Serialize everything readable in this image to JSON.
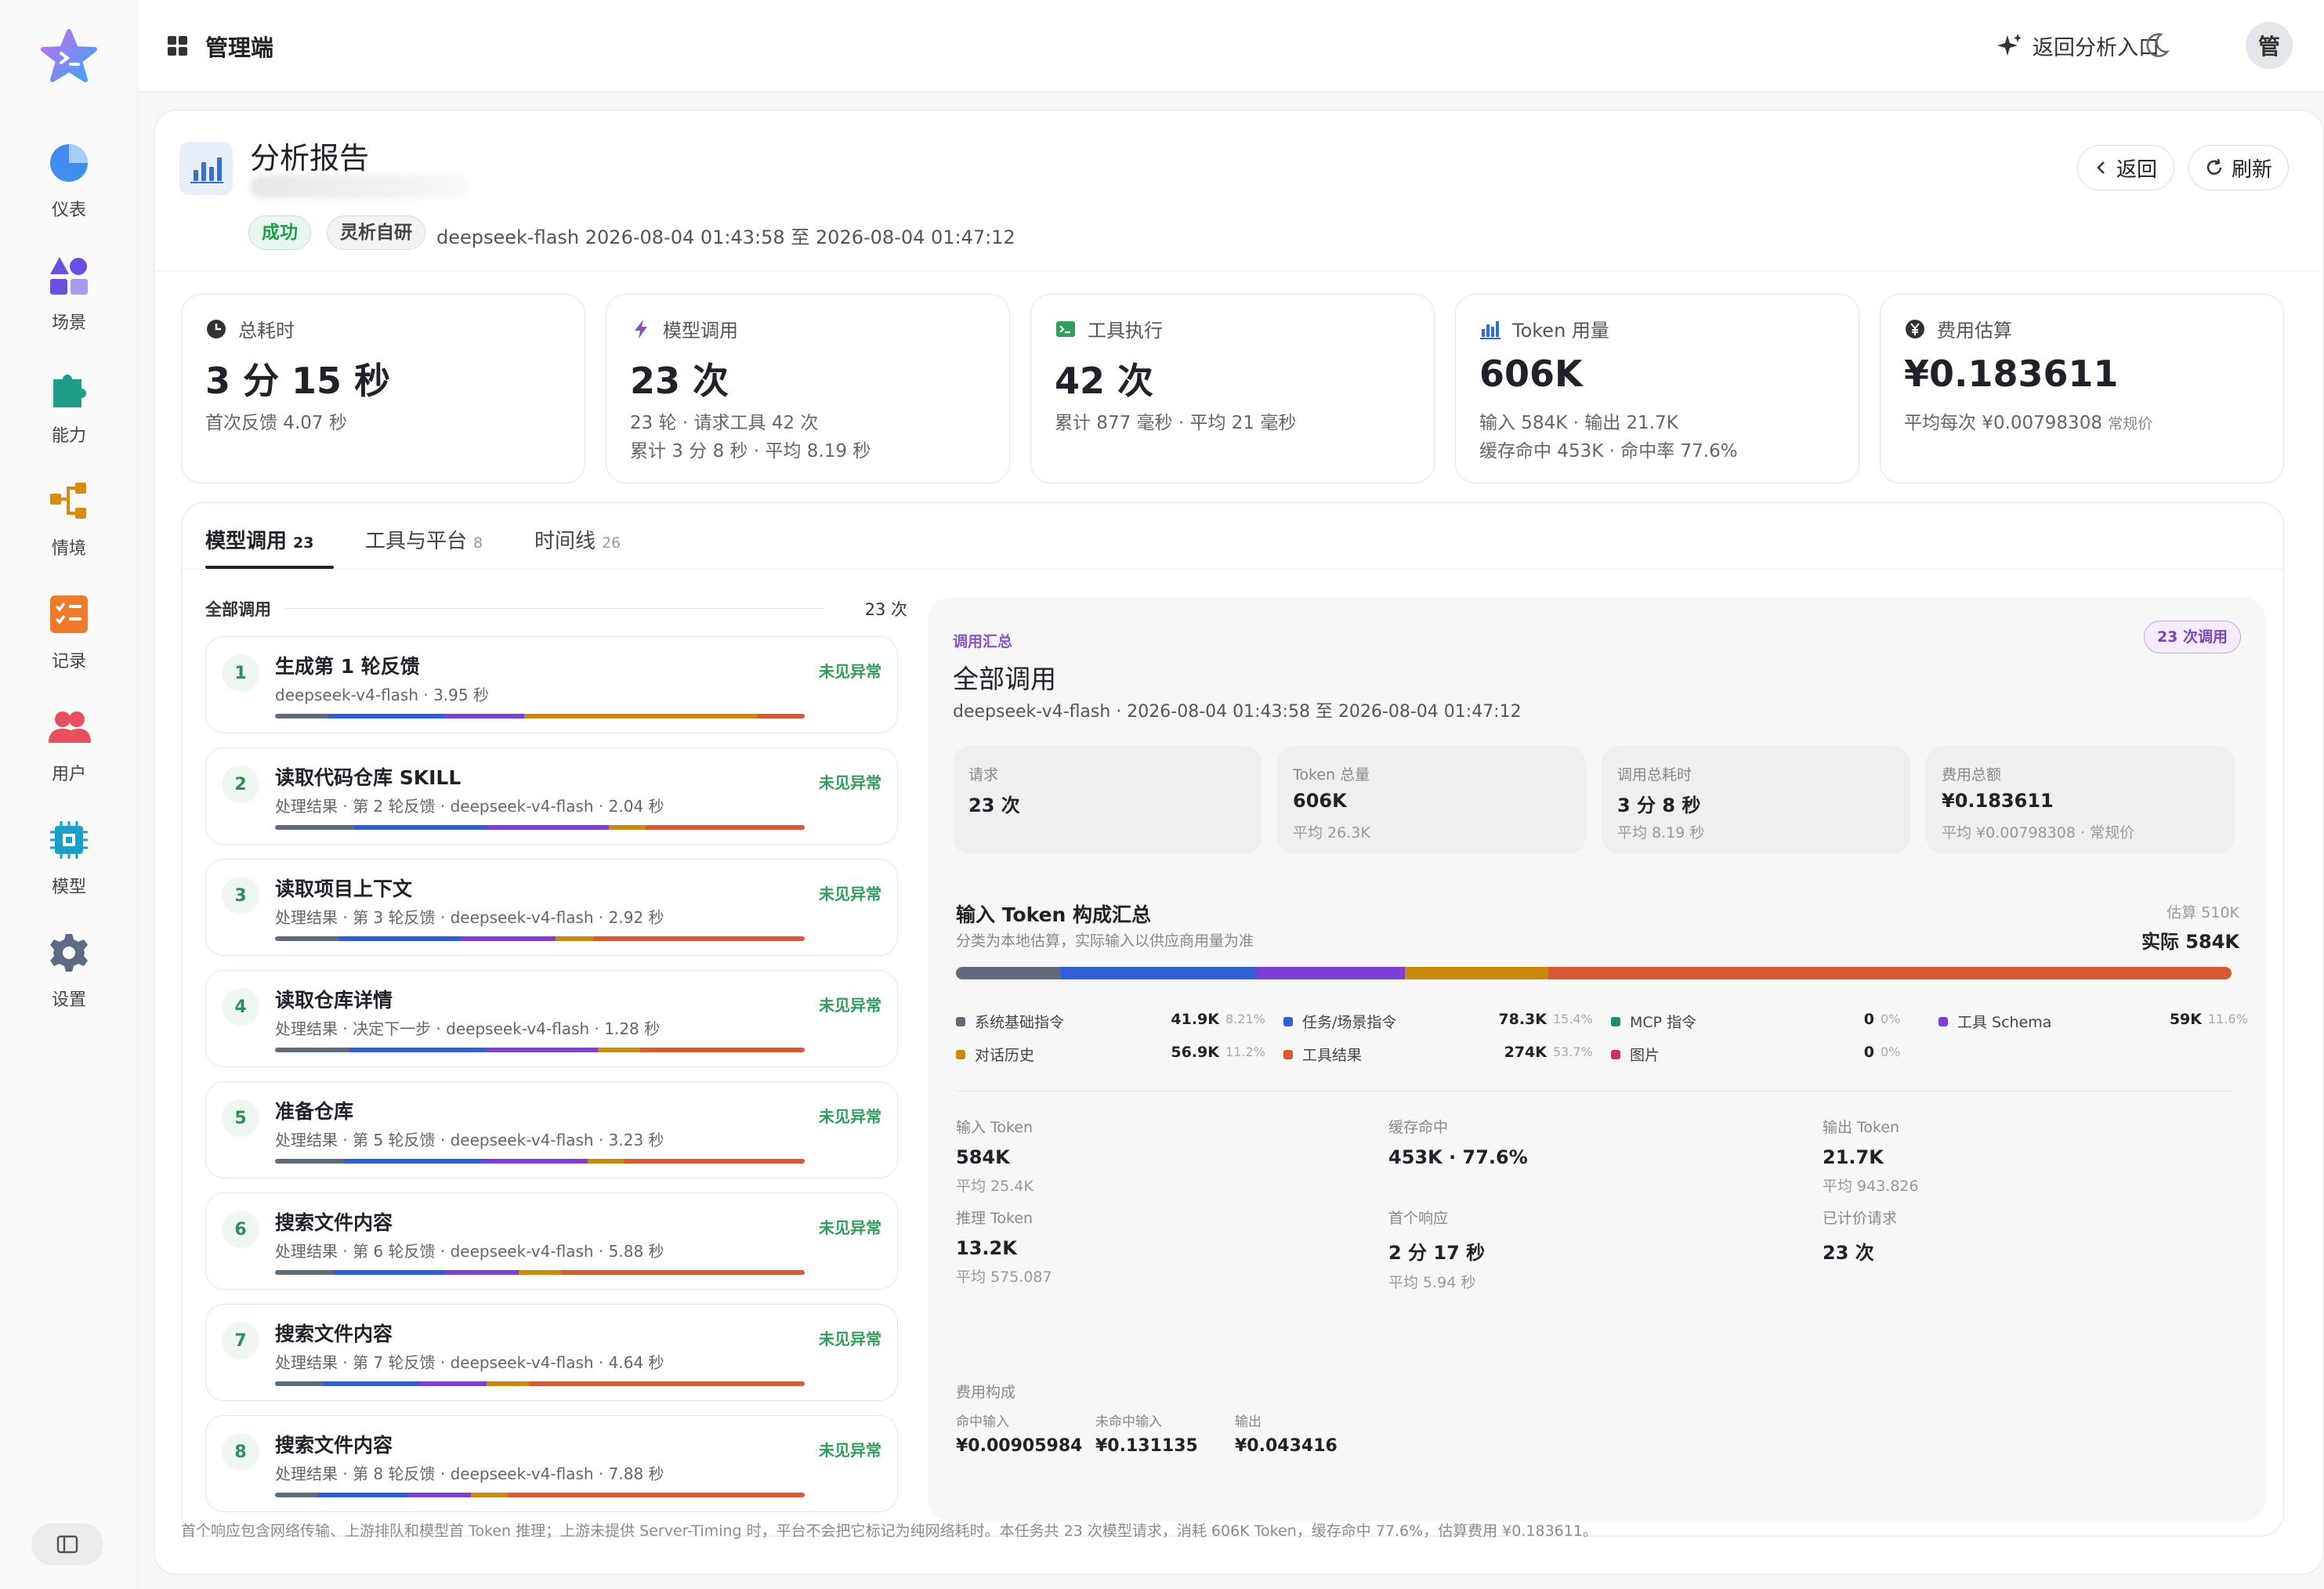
{
  "app": {
    "title": "管理端",
    "back_analysis": "返回分析入口",
    "avatar": "管"
  },
  "sidebar": {
    "items": [
      {
        "label": "仪表",
        "icon": "pie-chart-icon"
      },
      {
        "label": "场景",
        "icon": "shapes-icon"
      },
      {
        "label": "能力",
        "icon": "puzzle-icon"
      },
      {
        "label": "情境",
        "icon": "flow-icon"
      },
      {
        "label": "记录",
        "icon": "checklist-icon"
      },
      {
        "label": "用户",
        "icon": "users-icon"
      },
      {
        "label": "模型",
        "icon": "chip-icon"
      },
      {
        "label": "设置",
        "icon": "gear-icon"
      }
    ]
  },
  "report": {
    "title": "分析报告",
    "status": "成功",
    "org": "灵析自研",
    "meta": "deepseek-flash  2026-08-04 01:43:58 至 2026-08-04 01:47:12",
    "back": "返回",
    "refresh": "刷新"
  },
  "stats": [
    {
      "label": "总耗时",
      "value": "3 分 15 秒",
      "sub1": "首次反馈 4.07 秒",
      "sub2": "",
      "icon": "clock-icon",
      "color": "#333333"
    },
    {
      "label": "模型调用",
      "value": "23 次",
      "sub1": "23 轮 · 请求工具 42 次",
      "sub2": "累计 3 分 8 秒 · 平均 8.19 秒",
      "icon": "bolt-icon",
      "color": "#8a52c6"
    },
    {
      "label": "工具执行",
      "value": "42 次",
      "sub1": "累计 877 毫秒 · 平均 21 毫秒",
      "sub2": "",
      "icon": "terminal-icon",
      "color": "#2f9e5a"
    },
    {
      "label": "Token 用量",
      "value": "606K",
      "sub1": "输入 584K · 输出 21.7K",
      "sub2": "缓存命中 453K · 命中率 77.6%",
      "icon": "bar-chart-icon",
      "color": "#2f6fd6"
    },
    {
      "label": "费用估算",
      "value": "¥0.183611",
      "sub1": "平均每次 ¥0.00798308",
      "sub1_note": "常规价",
      "sub2": "",
      "icon": "yuan-icon",
      "color": "#333333"
    }
  ],
  "tabs": [
    {
      "label": "模型调用",
      "count": "23"
    },
    {
      "label": "工具与平台",
      "count": "8"
    },
    {
      "label": "时间线",
      "count": "26"
    }
  ],
  "calls_header": {
    "label": "全部调用",
    "total": "23 次"
  },
  "calls": [
    {
      "num": "1",
      "title": "生成第 1 轮反馈",
      "sub": "deepseek-v4-flash · 3.95 秒",
      "status": "未见异常",
      "segments": [
        0.1,
        0.32,
        0.47,
        0.91,
        1.0
      ]
    },
    {
      "num": "2",
      "title": "读取代码仓库 SKILL",
      "sub": "处理结果 · 第 2 轮反馈 · deepseek-v4-flash · 2.04 秒",
      "status": "未见异常",
      "segments": [
        0.15,
        0.4,
        0.63,
        0.7,
        1.0
      ]
    },
    {
      "num": "3",
      "title": "读取项目上下文",
      "sub": "处理结果 · 第 3 轮反馈 · deepseek-v4-flash · 2.92 秒",
      "status": "未见异常",
      "segments": [
        0.12,
        0.35,
        0.53,
        0.6,
        1.0
      ]
    },
    {
      "num": "4",
      "title": "读取仓库详情",
      "sub": "处理结果 · 决定下一步 · deepseek-v4-flash · 1.28 秒",
      "status": "未见异常",
      "segments": [
        0.14,
        0.4,
        0.61,
        0.69,
        1.0
      ]
    },
    {
      "num": "5",
      "title": "准备仓库",
      "sub": "处理结果 · 第 5 轮反馈 · deepseek-v4-flash · 3.23 秒",
      "status": "未见异常",
      "segments": [
        0.13,
        0.39,
        0.59,
        0.66,
        1.0
      ]
    },
    {
      "num": "6",
      "title": "搜索文件内容",
      "sub": "处理结果 · 第 6 轮反馈 · deepseek-v4-flash · 5.88 秒",
      "status": "未见异常",
      "segments": [
        0.11,
        0.32,
        0.46,
        0.54,
        1.0
      ]
    },
    {
      "num": "7",
      "title": "搜索文件内容",
      "sub": "处理结果 · 第 7 轮反馈 · deepseek-v4-flash · 4.64 秒",
      "status": "未见异常",
      "segments": [
        0.09,
        0.27,
        0.4,
        0.48,
        1.0
      ]
    },
    {
      "num": "8",
      "title": "搜索文件内容",
      "sub": "处理结果 · 第 8 轮反馈 · deepseek-v4-flash · 7.88 秒",
      "status": "未见异常",
      "segments": [
        0.08,
        0.25,
        0.37,
        0.44,
        1.0
      ]
    }
  ],
  "summary": {
    "eyebrow": "调用汇总",
    "badge": "23 次调用",
    "title": "全部调用",
    "meta": "deepseek-v4-flash · 2026-08-04 01:43:58 至 2026-08-04 01:47:12",
    "cards": [
      {
        "k": "请求",
        "v": "23 次",
        "s": ""
      },
      {
        "k": "Token 总量",
        "v": "606K",
        "s": "平均 26.3K"
      },
      {
        "k": "调用总耗时",
        "v": "3 分 8 秒",
        "s": "平均 8.19 秒"
      },
      {
        "k": "费用总额",
        "v": "¥0.183611",
        "s": "平均 ¥0.00798308 · 常规价"
      }
    ],
    "composition": {
      "title": "输入 Token 构成汇总",
      "desc": "分类为本地估算，实际输入以供应商用量为准",
      "estimate": "估算 510K",
      "actual": "实际 584K",
      "segments": [
        {
          "name": "系统基础指令",
          "value": "41.9K",
          "pct": "8.21%",
          "fraction": 0.0821,
          "color": "#5f6b7a"
        },
        {
          "name": "任务/场景指令",
          "value": "78.3K",
          "pct": "15.4%",
          "fraction": 0.154,
          "color": "#2f5fd6"
        },
        {
          "name": "MCP 指令",
          "value": "0",
          "pct": "0%",
          "fraction": 0,
          "color": "#1f8a7a"
        },
        {
          "name": "工具 Schema",
          "value": "59K",
          "pct": "11.6%",
          "fraction": 0.116,
          "color": "#7d3fd6"
        },
        {
          "name": "对话历史",
          "value": "56.9K",
          "pct": "11.2%",
          "fraction": 0.112,
          "color": "#c9890a"
        },
        {
          "name": "工具结果",
          "value": "274K",
          "pct": "53.7%",
          "fraction": 0.537,
          "color": "#d95a32"
        },
        {
          "name": "图片",
          "value": "0",
          "pct": "0%",
          "fraction": 0,
          "color": "#d42a6a"
        }
      ]
    },
    "metrics": [
      {
        "k": "输入 Token",
        "v": "584K",
        "s": "平均 25.4K"
      },
      {
        "k": "缓存命中",
        "v": "453K · 77.6%",
        "s": ""
      },
      {
        "k": "输出 Token",
        "v": "21.7K",
        "s": "平均 943.826"
      },
      {
        "k": "推理 Token",
        "v": "13.2K",
        "s": "平均 575.087"
      },
      {
        "k": "首个响应",
        "v": "2 分 17 秒",
        "s": "平均 5.94 秒"
      },
      {
        "k": "已计价请求",
        "v": "23 次",
        "s": ""
      }
    ],
    "fee": {
      "label": "费用构成",
      "items": [
        {
          "k": "命中输入",
          "v": "¥0.00905984"
        },
        {
          "k": "未命中输入",
          "v": "¥0.131135"
        },
        {
          "k": "输出",
          "v": "¥0.043416"
        }
      ]
    }
  },
  "footnote": "首个响应包含网络传输、上游排队和模型首 Token 推理；上游未提供 Server-Timing 时，平台不会把它标记为纯网络耗时。本任务共 23 次模型请求，消耗 606K Token，缓存命中 77.6%，估算费用 ¥0.183611。",
  "bar_colors": [
    "#5f6b7a",
    "#2f5fd6",
    "#7d3fd6",
    "#c9890a",
    "#d95a32"
  ]
}
